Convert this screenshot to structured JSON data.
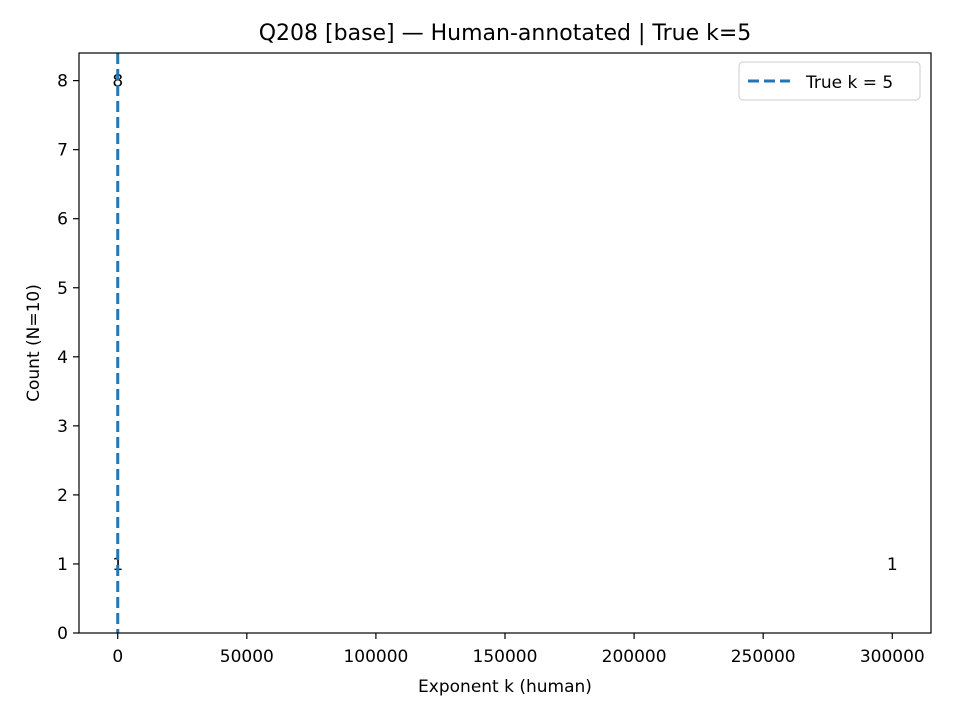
{
  "chart_data": {
    "type": "bar",
    "title": "Q208 [base] — Human-annotated | True k=5",
    "xlabel": "Exponent k (human)",
    "ylabel": "Count (N=10)",
    "xlim": [
      -15000,
      315000
    ],
    "ylim": [
      0,
      8.4
    ],
    "xticks": [
      0,
      50000,
      100000,
      150000,
      200000,
      250000,
      300000
    ],
    "xtick_labels": [
      "0",
      "50000",
      "100000",
      "150000",
      "200000",
      "250000",
      "300000"
    ],
    "yticks": [
      0,
      1,
      2,
      3,
      4,
      5,
      6,
      7,
      8
    ],
    "ytick_labels": [
      "0",
      "1",
      "2",
      "3",
      "4",
      "5",
      "6",
      "7",
      "8"
    ],
    "bars": [
      {
        "x": 0,
        "count": 1,
        "label": "1"
      },
      {
        "x": 5,
        "count": 8,
        "label": "8"
      },
      {
        "x": 300000,
        "count": 1,
        "label": "1"
      }
    ],
    "reference_line": {
      "x": 5,
      "label": "True k = 5",
      "color": "#1f77b4",
      "style": "dashed"
    },
    "legend": {
      "position": "top-right",
      "entries": [
        "True k = 5"
      ]
    },
    "grid": false
  },
  "colors": {
    "reference": "#1f77b4",
    "axes": "#000000",
    "background": "#ffffff"
  }
}
